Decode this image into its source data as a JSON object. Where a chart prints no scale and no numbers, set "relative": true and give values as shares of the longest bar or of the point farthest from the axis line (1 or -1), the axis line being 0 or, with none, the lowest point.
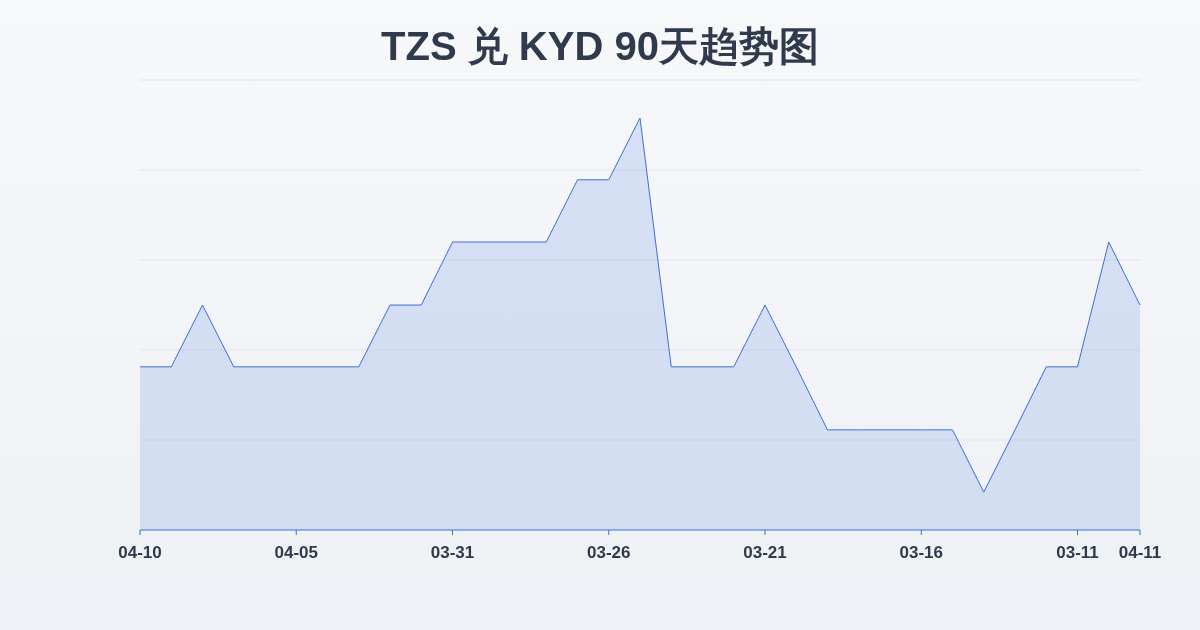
{
  "chart_data": {
    "type": "area",
    "title": "TZS 兑 KYD 90天趋势图",
    "relative": true,
    "grid": "y",
    "categories": [
      "04-10",
      null,
      null,
      null,
      null,
      "04-05",
      null,
      null,
      null,
      null,
      "03-31",
      null,
      null,
      null,
      null,
      "03-26",
      null,
      null,
      null,
      null,
      "03-21",
      null,
      null,
      null,
      null,
      "03-16",
      null,
      null,
      null,
      null,
      "03-11",
      null,
      "04-11"
    ],
    "series": [
      {
        "color": "#3a6fd8",
        "values": [
          0.396,
          0.396,
          0.546,
          0.396,
          0.396,
          0.396,
          0.396,
          0.396,
          0.546,
          0.546,
          0.699,
          0.699,
          0.699,
          0.699,
          0.85,
          0.85,
          1.0,
          0.396,
          0.396,
          0.396,
          0.546,
          0.396,
          0.243,
          0.243,
          0.243,
          0.243,
          0.243,
          0.092,
          0.243,
          0.396,
          0.396,
          0.699,
          0.546
        ]
      }
    ]
  }
}
